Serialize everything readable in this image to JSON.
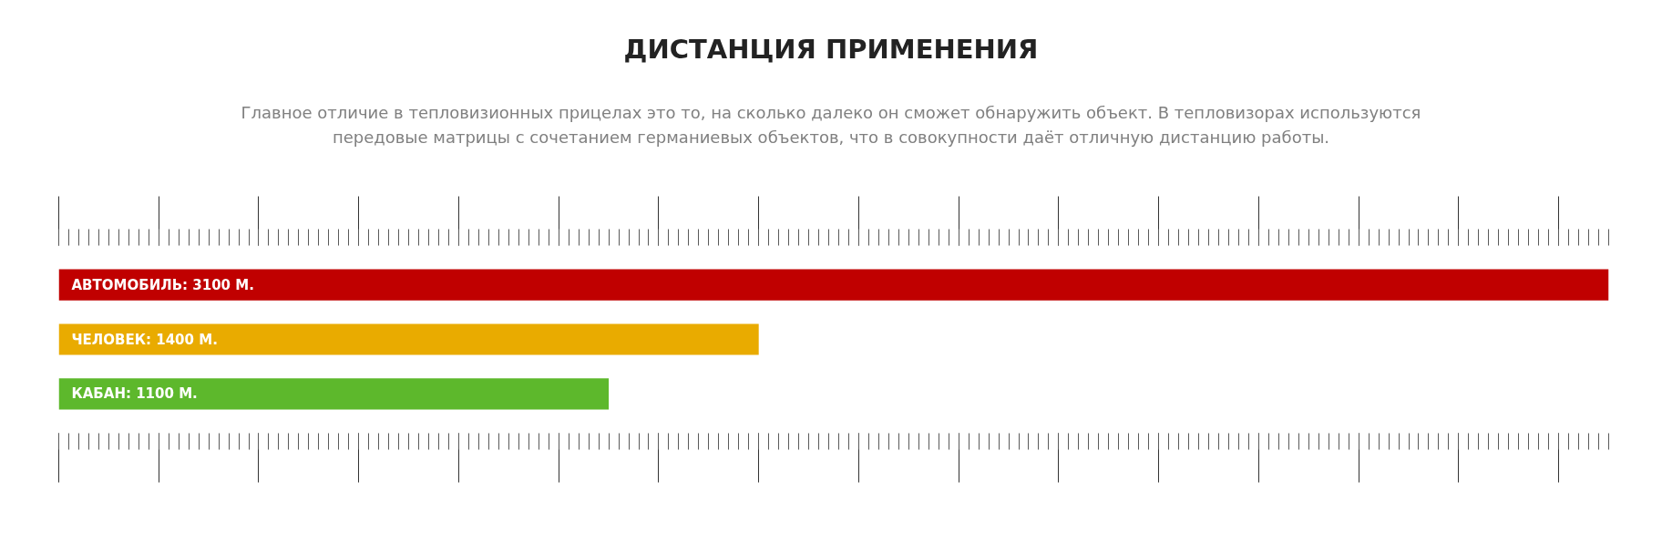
{
  "chart_data": {
    "type": "bar",
    "orientation": "horizontal",
    "title": "ДИСТАНЦИЯ ПРИМЕНЕНИЯ",
    "subtitle": "Главное отличие в тепловизионных прицелах это то, на сколько далеко он сможет обнаружить объект. В тепловизорах используются передовые матрицы с сочетанием германиевых объектов, что в совокупности даёт отличную дистанцию работы.",
    "categories": [
      null,
      null,
      null
    ],
    "values": [
      3100,
      1400,
      1100
    ],
    "colors": [
      "#c00000",
      "#e9ab00",
      "#5db82c"
    ],
    "value_labels": [
      "АВТОМОБИЛЬ: 3100  М.",
      "ЧЕЛОВЕК: 1400 М.",
      "КАБАН: 1100 М."
    ],
    "grid": false
  }
}
